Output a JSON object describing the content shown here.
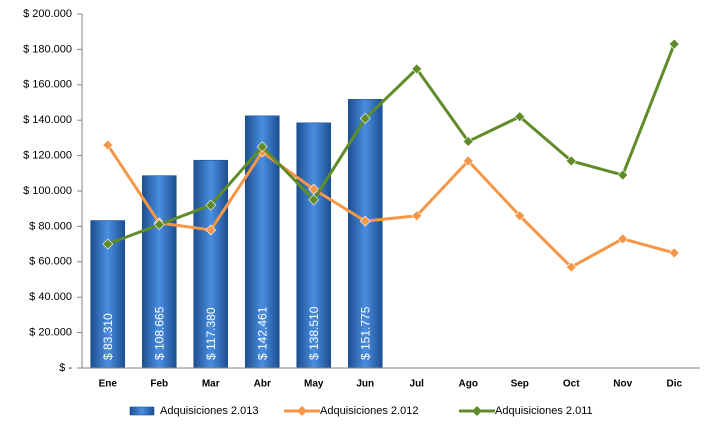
{
  "chart_data": {
    "type": "bar",
    "categories": [
      "Ene",
      "Feb",
      "Mar",
      "Abr",
      "May",
      "Jun",
      "Jul",
      "Ago",
      "Sep",
      "Oct",
      "Nov",
      "Dic"
    ],
    "series": [
      {
        "name": "Adquisiciones 2.013",
        "type": "bar",
        "color": "#2e6fc4",
        "values": [
          83310,
          108665,
          117380,
          142461,
          138510,
          151775,
          null,
          null,
          null,
          null,
          null,
          null
        ],
        "value_labels": [
          "$ 83.310",
          "$ 108.665",
          "$ 117.380",
          "$ 142.461",
          "$ 138.510",
          "$ 151.775",
          null,
          null,
          null,
          null,
          null,
          null
        ]
      },
      {
        "name": "Adquisiciones 2.012",
        "type": "line",
        "color": "#f79646",
        "values": [
          126000,
          82000,
          78000,
          122000,
          101000,
          83000,
          86000,
          117000,
          86000,
          57000,
          73000,
          65000
        ]
      },
      {
        "name": "Adquisiciones 2.011",
        "type": "line",
        "color": "#5f8c28",
        "values": [
          70000,
          81000,
          92000,
          125000,
          95000,
          141000,
          169000,
          128000,
          142000,
          117000,
          109000,
          183000
        ]
      }
    ],
    "ylim": [
      0,
      200000
    ],
    "yticks": [
      {
        "value": 0,
        "label": "$ -"
      },
      {
        "value": 20000,
        "label": "$ 20.000"
      },
      {
        "value": 40000,
        "label": "$ 40.000"
      },
      {
        "value": 60000,
        "label": "$ 60.000"
      },
      {
        "value": 80000,
        "label": "$ 80.000"
      },
      {
        "value": 100000,
        "label": "$ 100.000"
      },
      {
        "value": 120000,
        "label": "$ 120.000"
      },
      {
        "value": 140000,
        "label": "$ 140.000"
      },
      {
        "value": 160000,
        "label": "$ 160.000"
      },
      {
        "value": 180000,
        "label": "$ 180.000"
      },
      {
        "value": 200000,
        "label": "$ 200.000"
      }
    ],
    "grid": false,
    "legend": "bottom"
  }
}
